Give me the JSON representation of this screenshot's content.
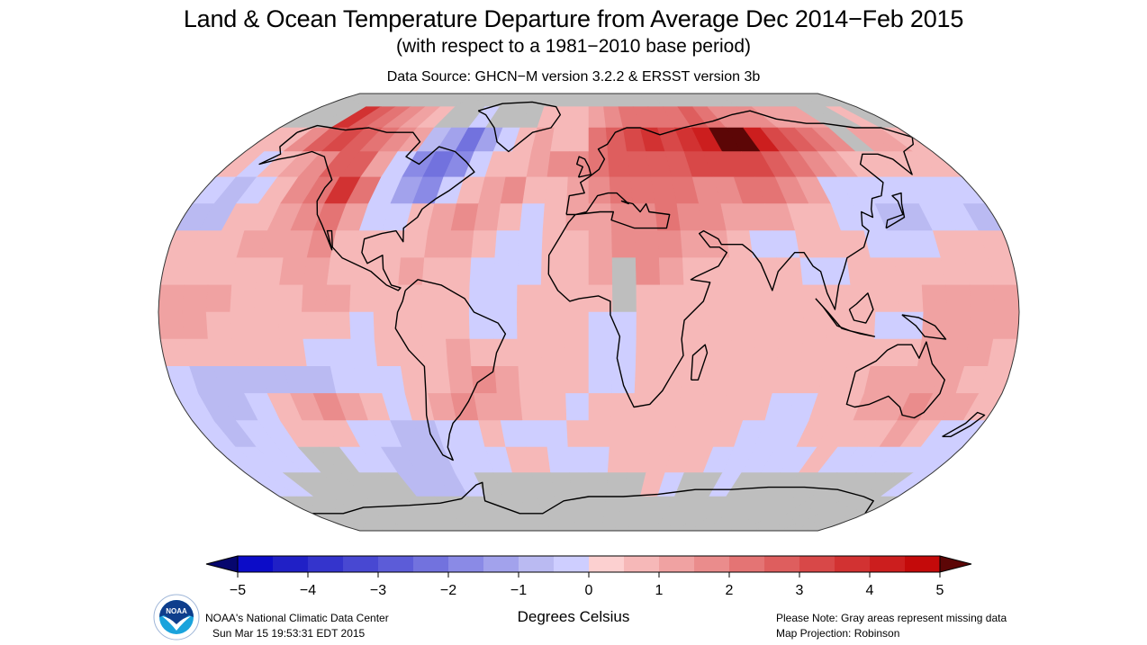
{
  "header": {
    "title": "Land & Ocean Temperature Departure from Average Dec 2014−Feb 2015",
    "subtitle": "(with respect to a 1981−2010 base period)",
    "source": "Data Source: GHCN−M version 3.2.2 & ERSST version 3b"
  },
  "footer": {
    "agency": "NOAA's National Climatic Data Center",
    "timestamp": "Sun Mar 15 19:53:31 EDT 2015",
    "note": "Please Note: Gray areas represent missing data",
    "projection": "Map Projection: Robinson",
    "logo_icon": "noaa-logo-icon",
    "logo_text": "NOAA"
  },
  "colorbar": {
    "units": "Degrees Celsius",
    "min": -5,
    "max": 5,
    "step": 0.5,
    "ticks": [
      "−5",
      "−4",
      "−3",
      "−2",
      "−1",
      "0",
      "1",
      "2",
      "3",
      "4",
      "5"
    ],
    "below_color": "#06066e",
    "above_color": "#5c0606",
    "colors": [
      "#0c0cc8",
      "#2020c6",
      "#3434cc",
      "#4848d2",
      "#5c5cd8",
      "#7272de",
      "#8a8ae6",
      "#a2a2ec",
      "#babaf2",
      "#ceceff",
      "#fcd0d0",
      "#f6b8b8",
      "#f0a2a2",
      "#ea8c8c",
      "#e47474",
      "#de5e5e",
      "#d84848",
      "#d23232",
      "#cc1e1e",
      "#c40a0a"
    ],
    "missing_color": "#bebebe"
  },
  "chart_data": {
    "type": "heatmap",
    "title": "Land & Ocean Temperature Departure from Average Dec 2014−Feb 2015",
    "subtitle": "(with respect to a 1981−2010 base period)",
    "units": "Degrees Celsius",
    "projection": "Robinson",
    "value_range": [
      -5,
      5
    ],
    "missing_value": null,
    "grid_resolution_deg": 10,
    "lat_rows": [
      85,
      75,
      65,
      55,
      45,
      35,
      25,
      15,
      5,
      -5,
      -15,
      -25,
      -35,
      -45,
      -55,
      -65,
      -75,
      -85
    ],
    "lon_cols": [
      -175,
      -165,
      -155,
      -145,
      -135,
      -125,
      -115,
      -105,
      -95,
      -85,
      -75,
      -65,
      -55,
      -45,
      -35,
      -25,
      -15,
      -5,
      5,
      15,
      25,
      35,
      45,
      55,
      65,
      75,
      85,
      95,
      105,
      115,
      125,
      135,
      145,
      155,
      165,
      175
    ],
    "anomalies": [
      [
        null,
        null,
        null,
        null,
        null,
        null,
        null,
        null,
        null,
        null,
        null,
        null,
        null,
        null,
        null,
        null,
        null,
        null,
        null,
        null,
        null,
        null,
        null,
        null,
        null,
        null,
        null,
        null,
        null,
        null,
        null,
        null,
        null,
        null,
        null,
        null
      ],
      [
        null,
        null,
        null,
        3.5,
        2.5,
        2.0,
        1.5,
        1.0,
        0.5,
        null,
        null,
        -0.5,
        null,
        null,
        null,
        0.5,
        0.5,
        0.5,
        1.0,
        1.5,
        2.0,
        2.0,
        2.0,
        2.0,
        2.5,
        2.0,
        1.5,
        1.5,
        1.5,
        1.0,
        1.0,
        1.0,
        null,
        null,
        0.5,
        null
      ],
      [
        0.5,
        0.5,
        1.5,
        2.5,
        3.0,
        2.5,
        2.0,
        1.5,
        1.0,
        -1.0,
        -1.5,
        -2.5,
        -1.5,
        -0.5,
        0.5,
        1.0,
        0.5,
        0.5,
        2.0,
        2.5,
        3.0,
        3.5,
        3.0,
        3.5,
        4.0,
        5.5,
        5.0,
        4.0,
        3.0,
        2.5,
        2.0,
        1.5,
        null,
        1.0,
        1.0,
        0.5
      ],
      [
        0.5,
        -0.5,
        0.5,
        1.0,
        1.5,
        2.5,
        2.5,
        1.0,
        -0.5,
        -2.0,
        -2.5,
        -2.0,
        -0.5,
        0.5,
        0.5,
        1.0,
        1.5,
        1.5,
        2.0,
        2.5,
        2.5,
        2.5,
        2.5,
        3.0,
        3.0,
        3.0,
        3.0,
        2.5,
        2.0,
        1.5,
        1.0,
        0.5,
        0.5,
        0.5,
        0.5,
        0.5
      ],
      [
        -0.5,
        -1.0,
        -0.5,
        0.5,
        1.5,
        2.0,
        3.5,
        2.0,
        -0.5,
        -1.5,
        -2.0,
        -0.5,
        0.5,
        1.0,
        1.5,
        0.5,
        0.5,
        1.0,
        1.5,
        2.0,
        2.0,
        2.0,
        2.0,
        1.5,
        1.5,
        2.0,
        2.0,
        1.5,
        1.0,
        -0.5,
        -0.5,
        -0.5,
        -0.5,
        -0.5,
        -0.5,
        -0.5
      ],
      [
        -1.0,
        -1.0,
        0.5,
        0.5,
        1.0,
        1.5,
        2.0,
        1.0,
        -0.5,
        -0.5,
        0.5,
        1.0,
        1.5,
        1.0,
        0.5,
        -0.5,
        0.5,
        1.0,
        1.0,
        1.5,
        1.5,
        2.0,
        1.5,
        1.5,
        1.0,
        1.0,
        1.0,
        0.5,
        0.5,
        -0.5,
        -0.5,
        -1.0,
        -1.0,
        -0.5,
        -0.5,
        -1.0
      ],
      [
        0.5,
        0.5,
        0.5,
        1.0,
        1.0,
        1.0,
        1.5,
        0.5,
        0.5,
        0.5,
        0.5,
        1.0,
        1.0,
        0.5,
        -0.5,
        -0.5,
        0.5,
        0.5,
        1.0,
        1.5,
        1.5,
        1.5,
        1.0,
        1.0,
        0.5,
        -0.5,
        -0.5,
        0.5,
        0.5,
        0.5,
        -0.5,
        -0.5,
        -0.5,
        0.5,
        0.5,
        0.5
      ],
      [
        0.5,
        0.5,
        0.5,
        0.5,
        0.5,
        1.0,
        1.0,
        0.5,
        0.5,
        0.5,
        1.0,
        0.5,
        0.5,
        -0.5,
        -0.5,
        -0.5,
        0.5,
        0.5,
        1.0,
        null,
        1.5,
        1.0,
        0.5,
        0.5,
        0.5,
        0.5,
        0.5,
        -0.5,
        -0.5,
        0.5,
        0.5,
        0.5,
        0.5,
        0.5,
        0.5,
        0.5
      ],
      [
        1.0,
        1.0,
        1.0,
        0.5,
        0.5,
        0.5,
        1.0,
        1.0,
        0.5,
        0.5,
        0.5,
        0.5,
        0.5,
        -0.5,
        -0.5,
        0.5,
        0.5,
        0.5,
        0.5,
        null,
        0.5,
        0.5,
        0.5,
        0.5,
        0.5,
        0.5,
        0.5,
        0.5,
        0.5,
        0.5,
        0.5,
        0.5,
        1.0,
        1.0,
        1.0,
        1.0
      ],
      [
        1.0,
        1.0,
        0.5,
        0.5,
        0.5,
        0.5,
        0.5,
        0.5,
        -0.5,
        0.5,
        0.5,
        0.5,
        0.5,
        -0.5,
        -0.5,
        0.5,
        0.5,
        0.5,
        -0.5,
        -0.5,
        0.5,
        0.5,
        0.5,
        0.5,
        0.5,
        0.5,
        0.5,
        0.5,
        0.5,
        0.5,
        -0.5,
        -0.5,
        1.0,
        1.0,
        1.0,
        1.0
      ],
      [
        0.5,
        0.5,
        0.5,
        0.5,
        0.5,
        0.5,
        -0.5,
        -0.5,
        -0.5,
        0.5,
        0.5,
        0.5,
        1.0,
        0.5,
        0.5,
        0.5,
        0.5,
        0.5,
        -0.5,
        -0.5,
        0.5,
        0.5,
        0.5,
        0.5,
        0.5,
        0.5,
        0.5,
        0.5,
        0.5,
        0.5,
        0.5,
        0.5,
        1.0,
        1.0,
        1.0,
        0.5
      ],
      [
        -0.5,
        -1.0,
        -1.0,
        -1.0,
        -1.0,
        -1.0,
        -1.0,
        -0.5,
        -0.5,
        -0.5,
        0.5,
        0.5,
        1.0,
        1.5,
        1.0,
        0.5,
        0.5,
        0.5,
        -0.5,
        -0.5,
        0.5,
        0.5,
        0.5,
        0.5,
        0.5,
        0.5,
        0.5,
        0.5,
        0.5,
        0.5,
        1.0,
        1.0,
        1.0,
        1.0,
        0.5,
        0.5
      ],
      [
        -0.5,
        -1.0,
        -1.0,
        -0.5,
        0.5,
        1.0,
        1.5,
        1.0,
        0.5,
        -0.5,
        0.5,
        1.0,
        1.5,
        1.0,
        1.0,
        0.5,
        0.5,
        -0.5,
        0.5,
        0.5,
        0.5,
        0.5,
        0.5,
        0.5,
        0.5,
        0.5,
        -0.5,
        -0.5,
        0.5,
        0.5,
        1.0,
        1.0,
        1.5,
        1.0,
        1.0,
        0.5
      ],
      [
        -0.5,
        -1.0,
        -0.5,
        -0.5,
        0.5,
        0.5,
        0.5,
        -0.5,
        -0.5,
        -1.0,
        -1.0,
        -0.5,
        -0.5,
        0.5,
        -0.5,
        -0.5,
        -0.5,
        0.5,
        0.5,
        0.5,
        0.5,
        0.5,
        0.5,
        0.5,
        0.5,
        -0.5,
        -0.5,
        -0.5,
        0.5,
        0.5,
        0.5,
        0.5,
        1.0,
        0.5,
        -0.5,
        -0.5
      ],
      [
        -0.5,
        -0.5,
        -0.5,
        -0.5,
        null,
        null,
        -0.5,
        -0.5,
        -1.0,
        -1.0,
        -1.0,
        -0.5,
        -0.5,
        -0.5,
        0.5,
        0.5,
        -0.5,
        -0.5,
        -0.5,
        0.5,
        0.5,
        0.5,
        0.5,
        0.5,
        -0.5,
        -0.5,
        -0.5,
        -0.5,
        -0.5,
        0.5,
        -0.5,
        -0.5,
        -0.5,
        -0.5,
        -0.5,
        -0.5
      ],
      [
        -0.5,
        -0.5,
        null,
        null,
        null,
        null,
        null,
        null,
        -1.0,
        -1.0,
        -1.0,
        -0.5,
        null,
        null,
        null,
        null,
        null,
        null,
        null,
        null,
        null,
        0.5,
        -0.5,
        null,
        null,
        -0.5,
        null,
        null,
        null,
        null,
        null,
        null,
        null,
        null,
        null,
        -0.5
      ],
      [
        null,
        null,
        null,
        null,
        null,
        null,
        null,
        null,
        null,
        null,
        null,
        null,
        null,
        null,
        null,
        null,
        null,
        null,
        null,
        null,
        null,
        null,
        null,
        null,
        null,
        null,
        null,
        null,
        null,
        null,
        null,
        null,
        null,
        null,
        null,
        null
      ],
      [
        null,
        null,
        null,
        null,
        null,
        null,
        null,
        null,
        null,
        null,
        null,
        null,
        null,
        null,
        null,
        null,
        null,
        null,
        null,
        null,
        null,
        null,
        null,
        null,
        null,
        null,
        null,
        null,
        null,
        null,
        null,
        null,
        null,
        null,
        null,
        null
      ]
    ],
    "legend": {
      "placement": "bottom",
      "label": "Degrees Celsius",
      "ticks": [
        -5,
        -4,
        -3,
        -2,
        -1,
        0,
        1,
        2,
        3,
        4,
        5
      ]
    },
    "notes": [
      "Gray areas represent missing data"
    ]
  }
}
